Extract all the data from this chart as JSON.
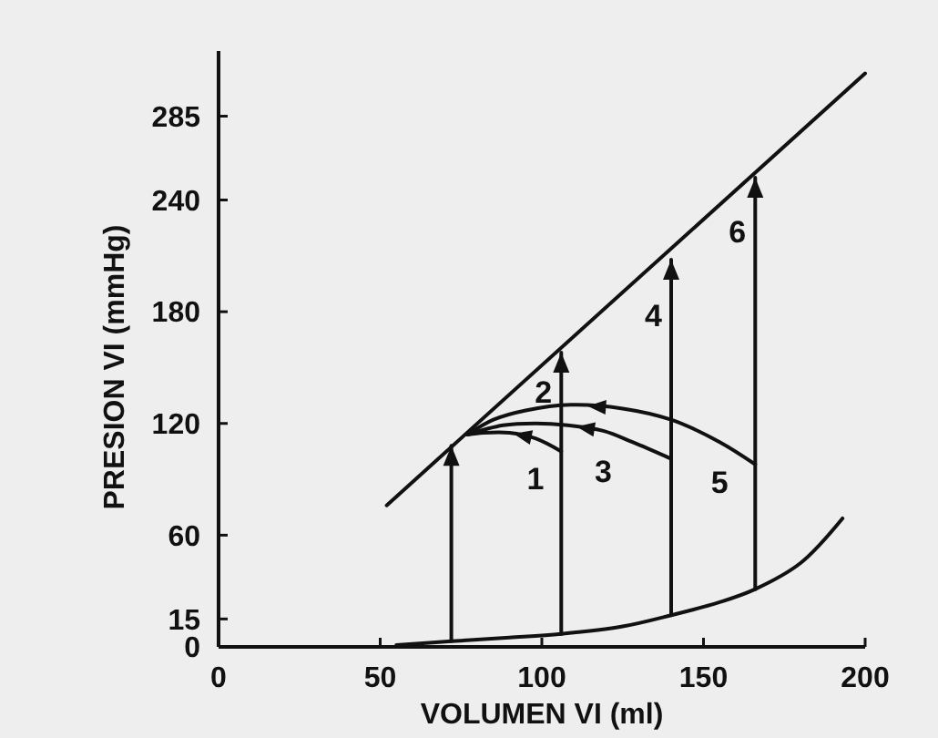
{
  "chart_data": {
    "type": "line",
    "xlabel": "VOLUMEN VI (ml)",
    "ylabel": "PRESION VI (mmHg)",
    "xlim": [
      0,
      200
    ],
    "xticks": [
      0,
      50,
      100,
      150,
      200
    ],
    "ylim": [
      0,
      320
    ],
    "yticks": [
      0,
      15,
      60,
      120,
      180,
      240,
      285
    ],
    "grid": false,
    "marker": "none",
    "line_style": "solid",
    "series": [
      {
        "color": "#111111",
        "x": [
          52,
          200
        ],
        "values": [
          76,
          308
        ]
      },
      {
        "color": "#111111",
        "x": [
          55,
          72,
          90,
          106,
          125,
          140,
          155,
          166,
          180,
          193
        ],
        "values": [
          1,
          3,
          5,
          7,
          11,
          17,
          24,
          31,
          45,
          69
        ]
      },
      {
        "color": "#111111",
        "x": [
          106,
          98,
          90,
          82,
          77
        ],
        "values": [
          105,
          112,
          115,
          115,
          114
        ]
      },
      {
        "color": "#111111",
        "x": [
          140,
          128,
          119,
          108,
          98,
          88,
          77
        ],
        "values": [
          101,
          110,
          116,
          119,
          120,
          119,
          114
        ]
      },
      {
        "color": "#111111",
        "x": [
          166,
          155,
          140,
          125,
          109,
          95,
          85,
          77
        ],
        "values": [
          98,
          110,
          122,
          128,
          130,
          127,
          122,
          114
        ]
      },
      {
        "color": "#111111",
        "x": [
          72,
          72
        ],
        "values": [
          3,
          108
        ]
      },
      {
        "color": "#111111",
        "x": [
          106,
          106
        ],
        "values": [
          7,
          158
        ]
      },
      {
        "color": "#111111",
        "x": [
          140,
          140
        ],
        "values": [
          17,
          208
        ]
      },
      {
        "color": "#111111",
        "x": [
          166,
          166
        ],
        "values": [
          31,
          252
        ]
      }
    ],
    "annotations": [
      {
        "text": "1",
        "x": 98,
        "y": 112
      },
      {
        "text": "2",
        "x": 106,
        "y": 137
      },
      {
        "text": "3",
        "x": 119,
        "y": 116
      },
      {
        "text": "4",
        "x": 140,
        "y": 178
      },
      {
        "text": "5",
        "x": 155,
        "y": 110
      },
      {
        "text": "6",
        "x": 166,
        "y": 223
      }
    ]
  }
}
